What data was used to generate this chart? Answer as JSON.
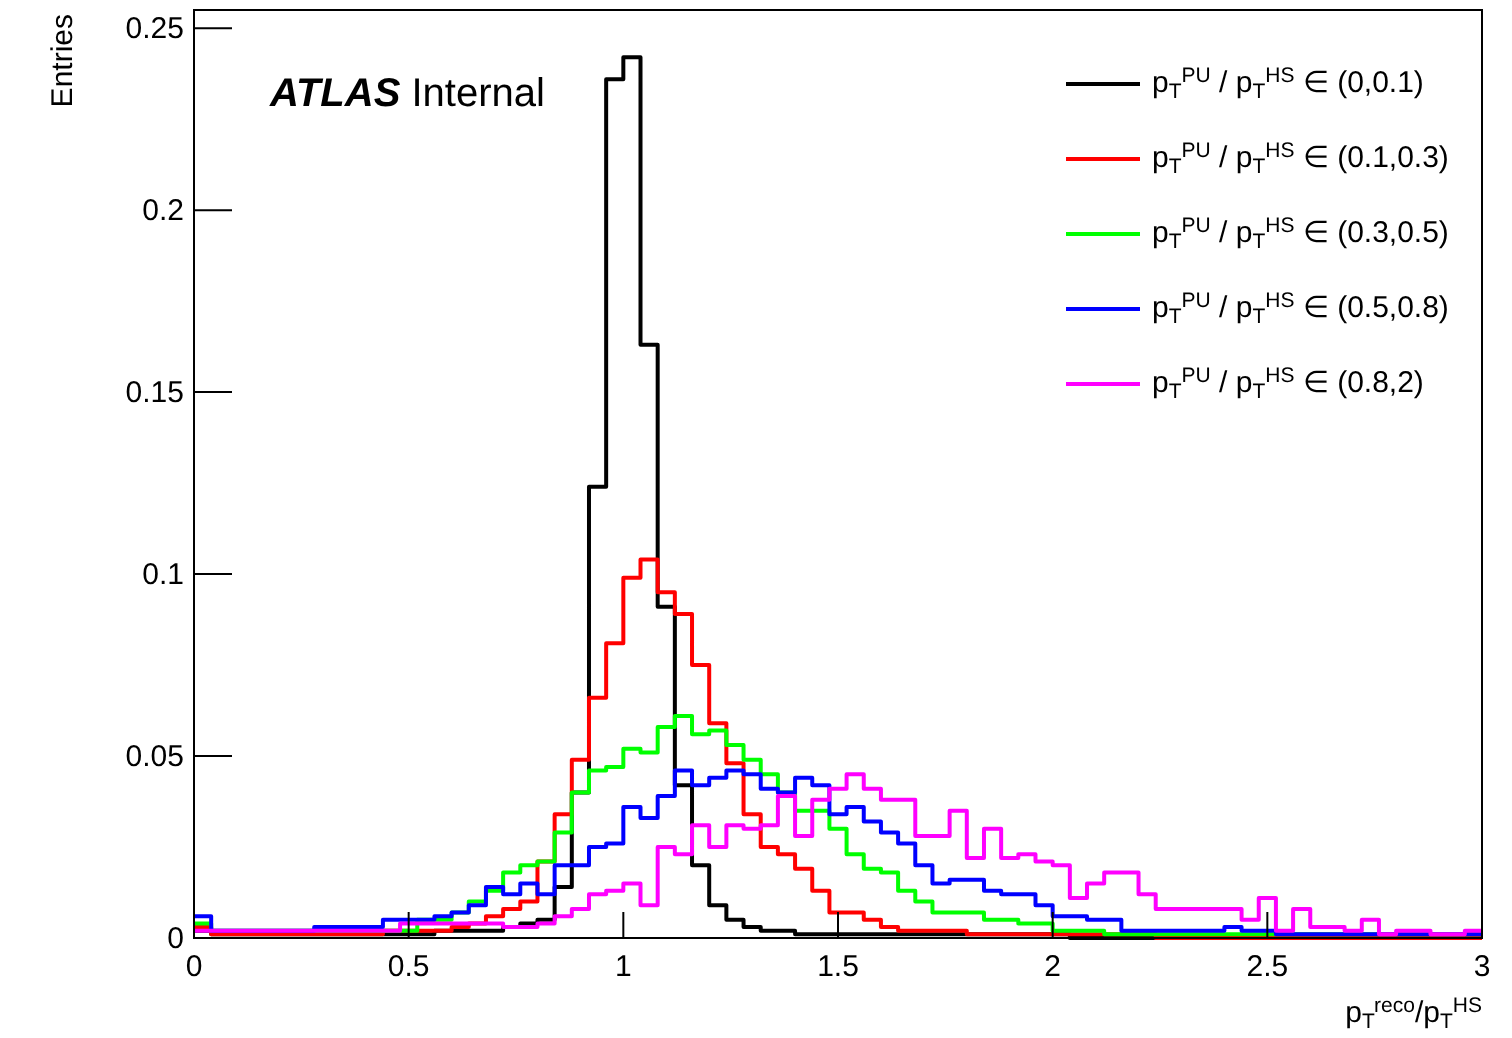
{
  "chart_data": {
    "type": "histogram",
    "xlabel": "p$_{T}$$^{reco}$/p$_{T}$$^{HS}$",
    "ylabel": "Entries",
    "annotations": [
      "ATLAS",
      "Internal"
    ],
    "bins": [
      0,
      0.04,
      0.08,
      0.12,
      0.16,
      0.2,
      0.24,
      0.28,
      0.32,
      0.36,
      0.4,
      0.44,
      0.48,
      0.52,
      0.56,
      0.6,
      0.64,
      0.68,
      0.72,
      0.76,
      0.8,
      0.84,
      0.88,
      0.92,
      0.96,
      1,
      1.04,
      1.08,
      1.12,
      1.16,
      1.2,
      1.24,
      1.28,
      1.32,
      1.36,
      1.4,
      1.44,
      1.48,
      1.52,
      1.56,
      1.6,
      1.64,
      1.68,
      1.72,
      1.76,
      1.8,
      1.84,
      1.88,
      1.92,
      1.96,
      2,
      2.04,
      2.08,
      2.12,
      2.16,
      2.2,
      2.24,
      2.28,
      2.32,
      2.36,
      2.4,
      2.44,
      2.48,
      2.52,
      2.56,
      2.6,
      2.64,
      2.68,
      2.72,
      2.76,
      2.8,
      2.84,
      2.88,
      2.92,
      2.96,
      3
    ],
    "xlim": [
      0,
      3
    ],
    "ylim": [
      0,
      0.255
    ],
    "xticks": [
      0,
      0.5,
      1,
      1.5,
      2,
      2.5,
      3
    ],
    "yticks": [
      0,
      0.05,
      0.1,
      0.15,
      0.2,
      0.25
    ],
    "legend": "top right",
    "grid": false,
    "series": [
      {
        "name": "p$_{T}$$^{PU}$ / p$_{T}$$^{HS}$ ∈ (0,0.1)",
        "color": "#000000",
        "values": [
          0.002,
          0.001,
          0.001,
          0.001,
          0.001,
          0.001,
          0.001,
          0.001,
          0.001,
          0.001,
          0.001,
          0.001,
          0.001,
          0.001,
          0.002,
          0.002,
          0.002,
          0.002,
          0.003,
          0.004,
          0.005,
          0.014,
          0.04,
          0.124,
          0.236,
          0.242,
          0.163,
          0.091,
          0.042,
          0.02,
          0.009,
          0.005,
          0.003,
          0.002,
          0.002,
          0.001,
          0.001,
          0.001,
          0.001,
          0.001,
          0.001,
          0.001,
          0.001,
          0.001,
          0.001,
          0.001,
          0.001,
          0.001,
          0.001,
          0.001,
          0.001,
          0,
          0,
          0,
          0,
          0,
          0,
          0,
          0,
          0,
          0,
          0,
          0,
          0,
          0,
          0,
          0,
          0,
          0,
          0,
          0,
          0,
          0,
          0,
          0
        ]
      },
      {
        "name": "p$_{T}$$^{PU}$ / p$_{T}$$^{HS}$ ∈ (0.1,0.3)",
        "color": "#ff0000",
        "values": [
          0.003,
          0.001,
          0.001,
          0.001,
          0.001,
          0.001,
          0.001,
          0.001,
          0.001,
          0.001,
          0.001,
          0.002,
          0.002,
          0.002,
          0.002,
          0.003,
          0.004,
          0.006,
          0.008,
          0.01,
          0.021,
          0.034,
          0.049,
          0.066,
          0.081,
          0.099,
          0.104,
          0.095,
          0.089,
          0.075,
          0.059,
          0.048,
          0.034,
          0.025,
          0.023,
          0.019,
          0.013,
          0.007,
          0.007,
          0.005,
          0.003,
          0.002,
          0.002,
          0.002,
          0.002,
          0.001,
          0.001,
          0.001,
          0.001,
          0.001,
          0.001,
          0.001,
          0.001,
          0.001,
          0.001,
          0.001,
          0,
          0,
          0,
          0,
          0,
          0,
          0,
          0,
          0,
          0,
          0,
          0,
          0,
          0,
          0,
          0,
          0,
          0,
          0
        ]
      },
      {
        "name": "p$_{T}$$^{PU}$ / p$_{T}$$^{HS}$ ∈ (0.3,0.5)",
        "color": "#00ff00",
        "values": [
          0.004,
          0.002,
          0.002,
          0.002,
          0.002,
          0.002,
          0.002,
          0.002,
          0.002,
          0.002,
          0.002,
          0.002,
          0.002,
          0.005,
          0.005,
          0.007,
          0.01,
          0.013,
          0.018,
          0.02,
          0.021,
          0.029,
          0.04,
          0.046,
          0.047,
          0.052,
          0.051,
          0.058,
          0.061,
          0.056,
          0.057,
          0.053,
          0.049,
          0.045,
          0.04,
          0.035,
          0.035,
          0.03,
          0.023,
          0.019,
          0.018,
          0.013,
          0.01,
          0.007,
          0.007,
          0.007,
          0.005,
          0.005,
          0.004,
          0.004,
          0.002,
          0.002,
          0.002,
          0.001,
          0.001,
          0.001,
          0.001,
          0.001,
          0.001,
          0.001,
          0.001,
          0.001,
          0.001,
          0.001,
          0.001,
          0.001,
          0.001,
          0.001,
          0.001,
          0.001,
          0.001,
          0.001,
          0.001,
          0.001,
          0.001
        ]
      },
      {
        "name": "p$_{T}$$^{PU}$ / p$_{T}$$^{HS}$ ∈ (0.5,0.8)",
        "color": "#0000ff",
        "values": [
          0.006,
          0.002,
          0.002,
          0.002,
          0.002,
          0.002,
          0.002,
          0.003,
          0.003,
          0.003,
          0.003,
          0.005,
          0.005,
          0.005,
          0.006,
          0.007,
          0.009,
          0.014,
          0.012,
          0.015,
          0.012,
          0.02,
          0.02,
          0.025,
          0.026,
          0.036,
          0.033,
          0.039,
          0.046,
          0.042,
          0.044,
          0.046,
          0.045,
          0.041,
          0.04,
          0.044,
          0.042,
          0.034,
          0.036,
          0.032,
          0.029,
          0.026,
          0.02,
          0.015,
          0.016,
          0.016,
          0.013,
          0.012,
          0.012,
          0.009,
          0.006,
          0.006,
          0.005,
          0.005,
          0.002,
          0.002,
          0.002,
          0.002,
          0.002,
          0.002,
          0.003,
          0.002,
          0.002,
          0.001,
          0.001,
          0.001,
          0.001,
          0.001,
          0.001,
          0.001,
          0.001,
          0.001,
          0.001,
          0.001,
          0.001
        ]
      },
      {
        "name": "p$_{T}$$^{PU}$ / p$_{T}$$^{HS}$ ∈ (0.8,2)",
        "color": "#ff00ff",
        "values": [
          0.002,
          0.002,
          0.002,
          0.002,
          0.002,
          0.002,
          0.002,
          0.002,
          0.002,
          0.002,
          0.002,
          0.002,
          0.004,
          0.004,
          0.004,
          0.004,
          0.004,
          0.004,
          0.003,
          0.003,
          0.004,
          0.006,
          0.008,
          0.012,
          0.013,
          0.015,
          0.009,
          0.025,
          0.023,
          0.031,
          0.025,
          0.031,
          0.03,
          0.031,
          0.039,
          0.028,
          0.038,
          0.041,
          0.045,
          0.041,
          0.038,
          0.038,
          0.028,
          0.028,
          0.035,
          0.022,
          0.03,
          0.022,
          0.023,
          0.021,
          0.02,
          0.011,
          0.015,
          0.018,
          0.018,
          0.012,
          0.008,
          0.008,
          0.008,
          0.008,
          0.008,
          0.005,
          0.011,
          0.002,
          0.008,
          0.003,
          0.003,
          0.002,
          0.005,
          0.001,
          0.002,
          0.002,
          0.001,
          0.001,
          0.002
        ]
      }
    ]
  }
}
